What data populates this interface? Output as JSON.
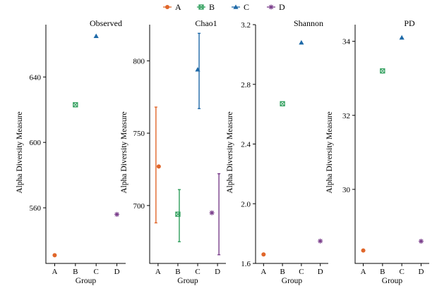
{
  "legend": {
    "title": "",
    "entries": [
      {
        "name": "A",
        "color": "#e0662a",
        "marker": "circle"
      },
      {
        "name": "B",
        "color": "#2e9e5b",
        "marker": "square-x"
      },
      {
        "name": "C",
        "color": "#1f6aa8",
        "marker": "triangle"
      },
      {
        "name": "D",
        "color": "#7b3f8c",
        "marker": "asterisk"
      }
    ]
  },
  "chart_data": [
    {
      "type": "scatter",
      "title": "Observed",
      "xlabel": "Group",
      "ylabel": "Alpha Diversity Measure",
      "categories": [
        "A",
        "B",
        "C",
        "D"
      ],
      "values": [
        531,
        623,
        665,
        556
      ],
      "ylim": [
        526,
        672
      ],
      "yticks": [
        560,
        600,
        640
      ]
    },
    {
      "type": "scatter",
      "title": "Chao1",
      "xlabel": "Group",
      "ylabel": "Alpha Diversity Measure",
      "categories": [
        "A",
        "B",
        "C",
        "D"
      ],
      "values": [
        727,
        694,
        794,
        695
      ],
      "error_low": [
        688,
        675,
        767,
        666
      ],
      "error_high": [
        768,
        711,
        819,
        722
      ],
      "ylim": [
        660,
        825
      ],
      "yticks": [
        700,
        750,
        800
      ]
    },
    {
      "type": "scatter",
      "title": "Shannon",
      "xlabel": "Group",
      "ylabel": "Alpha Diversity Measure",
      "categories": [
        "A",
        "B",
        "C",
        "D"
      ],
      "values": [
        1.66,
        2.67,
        3.08,
        1.75
      ],
      "ylim": [
        1.6,
        3.2
      ],
      "yticks": [
        "1.6",
        "2.0",
        "2.4",
        "2.8",
        "3.2"
      ]
    },
    {
      "type": "scatter",
      "title": "PD",
      "xlabel": "Group",
      "ylabel": "Alpha Diversity Measure",
      "categories": [
        "A",
        "B",
        "C",
        "D"
      ],
      "values": [
        28.35,
        33.2,
        34.1,
        28.6
      ],
      "ylim": [
        28.0,
        34.45
      ],
      "yticks": [
        30,
        32,
        34
      ]
    }
  ]
}
